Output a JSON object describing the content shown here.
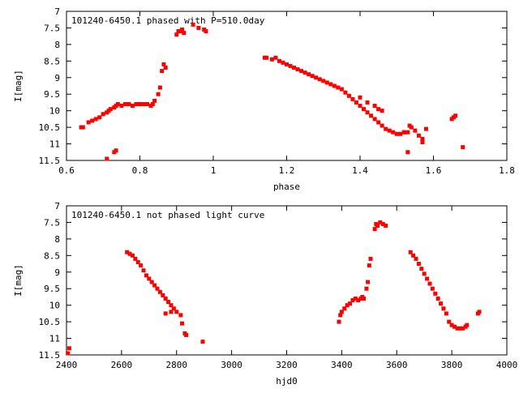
{
  "chart_data": [
    {
      "type": "scatter",
      "title": "101240-6450.1 phased with P=510.0day",
      "xlabel": "phase",
      "ylabel": "I[mag]",
      "xlim": [
        0.6,
        1.8
      ],
      "ylim": [
        11.5,
        7
      ],
      "y_inverted": true,
      "xticks": [
        "0.6",
        "0.8",
        "1",
        "1.2",
        "1.4",
        "1.6",
        "1.8"
      ],
      "yticks": [
        "7",
        "7.5",
        "8",
        "8.5",
        "9",
        "9.5",
        "10",
        "10.5",
        "11",
        "11.5"
      ],
      "grid": false,
      "marker_color": "#ff0000",
      "series": [
        {
          "x": [
            0.64,
            0.645,
            0.66,
            0.67,
            0.68,
            0.69,
            0.7,
            0.71,
            0.715,
            0.72,
            0.73,
            0.735,
            0.74,
            0.75,
            0.76,
            0.77,
            0.78,
            0.79,
            0.8,
            0.81,
            0.82,
            0.83,
            0.835,
            0.84,
            0.85,
            0.855,
            0.86,
            0.865,
            0.87,
            0.9,
            0.905,
            0.91,
            0.915,
            0.92,
            0.945,
            0.96,
            0.975,
            0.98,
            0.71,
            0.73,
            0.735,
            1.14,
            1.145,
            1.16,
            1.17,
            1.18,
            1.19,
            1.2,
            1.21,
            1.22,
            1.23,
            1.24,
            1.25,
            1.26,
            1.27,
            1.28,
            1.29,
            1.3,
            1.31,
            1.32,
            1.33,
            1.34,
            1.35,
            1.36,
            1.37,
            1.38,
            1.39,
            1.4,
            1.41,
            1.42,
            1.43,
            1.44,
            1.45,
            1.46,
            1.47,
            1.48,
            1.49,
            1.5,
            1.51,
            1.52,
            1.53,
            1.54,
            1.55,
            1.56,
            1.57,
            1.58,
            1.4,
            1.42,
            1.44,
            1.45,
            1.46,
            1.52,
            1.53,
            1.535,
            1.57,
            1.65,
            1.655,
            1.66,
            1.68
          ],
          "y": [
            10.5,
            10.5,
            10.35,
            10.3,
            10.25,
            10.2,
            10.1,
            10.05,
            10.0,
            9.95,
            9.9,
            9.85,
            9.8,
            9.85,
            9.8,
            9.8,
            9.85,
            9.8,
            9.8,
            9.8,
            9.8,
            9.85,
            9.8,
            9.7,
            9.5,
            9.3,
            8.8,
            8.6,
            8.7,
            7.7,
            7.6,
            7.6,
            7.55,
            7.65,
            7.4,
            7.5,
            7.55,
            7.6,
            11.45,
            11.25,
            11.2,
            8.4,
            8.4,
            8.45,
            8.4,
            8.5,
            8.55,
            8.6,
            8.65,
            8.7,
            8.75,
            8.8,
            8.85,
            8.9,
            8.95,
            9.0,
            9.05,
            9.1,
            9.15,
            9.2,
            9.25,
            9.3,
            9.35,
            9.45,
            9.55,
            9.65,
            9.75,
            9.85,
            9.95,
            10.05,
            10.15,
            10.25,
            10.35,
            10.45,
            10.55,
            10.6,
            10.65,
            10.7,
            10.7,
            10.65,
            10.65,
            10.5,
            10.6,
            10.75,
            10.85,
            10.55,
            9.6,
            9.75,
            9.85,
            9.95,
            10.0,
            10.65,
            11.25,
            10.45,
            10.95,
            10.25,
            10.2,
            10.15,
            11.1
          ]
        }
      ]
    },
    {
      "type": "scatter",
      "title": "101240-6450.1 not phased light curve",
      "xlabel": "hjd0",
      "ylabel": "I[mag]",
      "xlim": [
        2400,
        4000
      ],
      "ylim": [
        11.5,
        7
      ],
      "y_inverted": true,
      "xticks": [
        "2400",
        "2600",
        "2800",
        "3000",
        "3200",
        "3400",
        "3600",
        "3800",
        "4000"
      ],
      "yticks": [
        "7",
        "7.5",
        "8",
        "8.5",
        "9",
        "9.5",
        "10",
        "10.5",
        "11",
        "11.5"
      ],
      "grid": false,
      "marker_color": "#ff0000",
      "series": [
        {
          "x": [
            2405,
            2410,
            2620,
            2630,
            2640,
            2650,
            2660,
            2670,
            2680,
            2690,
            2700,
            2710,
            2720,
            2730,
            2740,
            2750,
            2760,
            2770,
            2780,
            2790,
            2800,
            2760,
            2780,
            2815,
            2820,
            2830,
            2835,
            2895,
            3390,
            3395,
            3400,
            3410,
            3420,
            3430,
            3440,
            3450,
            3460,
            3470,
            3475,
            3480,
            3490,
            3495,
            3500,
            3505,
            3520,
            3525,
            3530,
            3540,
            3550,
            3560,
            3650,
            3660,
            3670,
            3680,
            3690,
            3700,
            3710,
            3720,
            3730,
            3740,
            3750,
            3760,
            3770,
            3780,
            3790,
            3800,
            3810,
            3820,
            3830,
            3840,
            3850,
            3855,
            3895,
            3900
          ],
          "y": [
            11.45,
            11.3,
            8.4,
            8.45,
            8.5,
            8.6,
            8.7,
            8.8,
            8.95,
            9.1,
            9.2,
            9.3,
            9.4,
            9.5,
            9.6,
            9.7,
            9.8,
            9.9,
            10.0,
            10.1,
            10.2,
            10.25,
            10.2,
            10.3,
            10.55,
            10.85,
            10.9,
            11.1,
            10.5,
            10.3,
            10.2,
            10.1,
            10.0,
            9.95,
            9.85,
            9.8,
            9.85,
            9.8,
            9.75,
            9.8,
            9.5,
            9.3,
            8.8,
            8.6,
            7.7,
            7.55,
            7.6,
            7.5,
            7.55,
            7.6,
            8.4,
            8.5,
            8.6,
            8.75,
            8.9,
            9.05,
            9.2,
            9.35,
            9.5,
            9.65,
            9.8,
            9.95,
            10.1,
            10.25,
            10.5,
            10.6,
            10.65,
            10.7,
            10.7,
            10.7,
            10.65,
            10.6,
            10.25,
            10.2
          ]
        }
      ]
    }
  ]
}
